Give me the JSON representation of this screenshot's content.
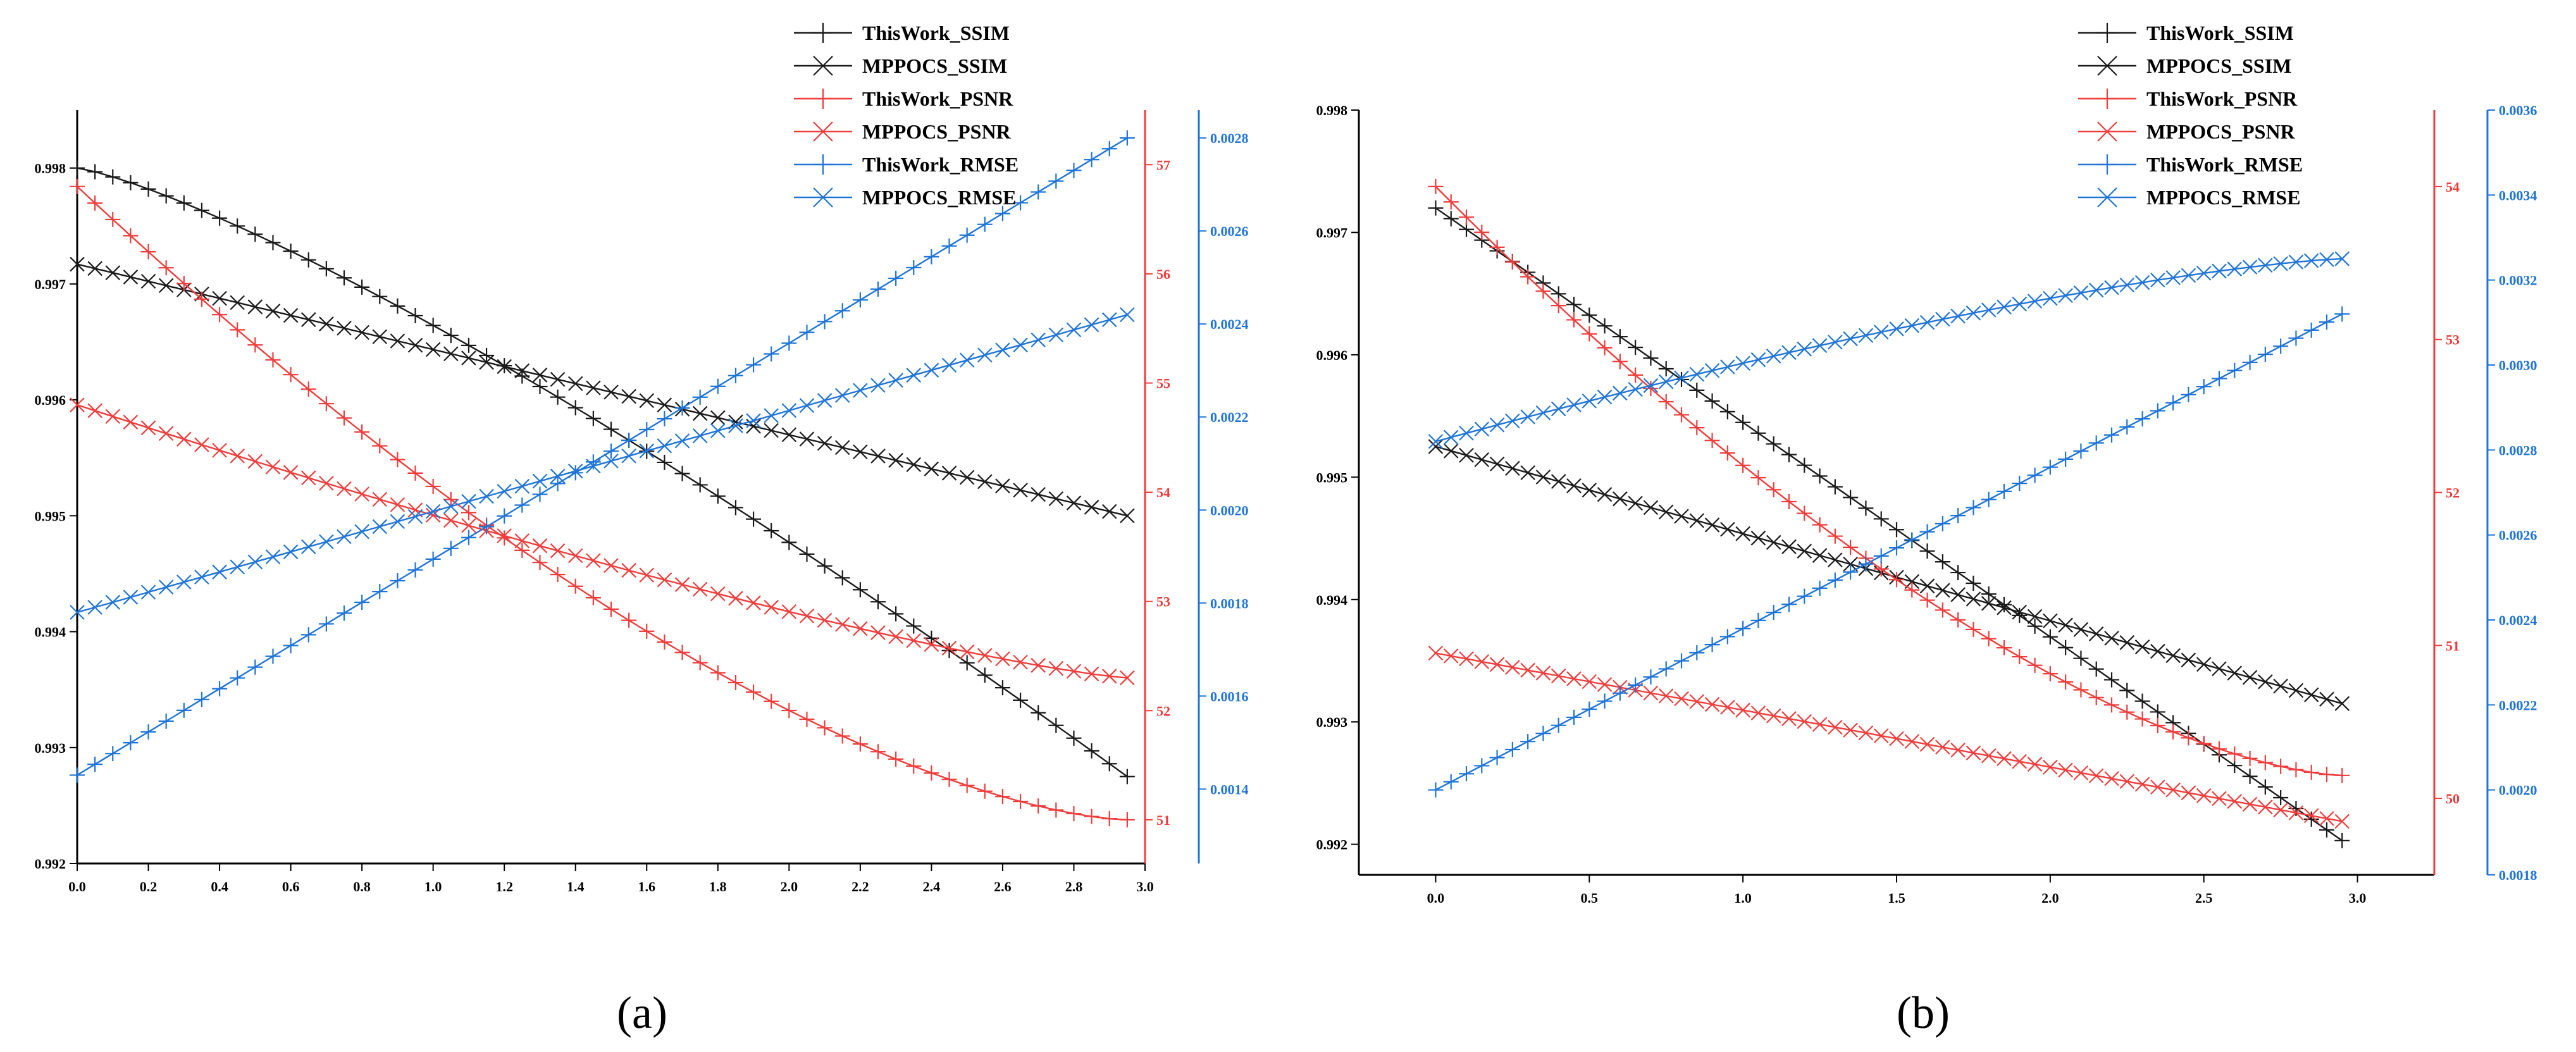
{
  "figure": {
    "caption_a": "(a)",
    "caption_b": "(b)"
  },
  "colors": {
    "ssim": "#1a1a1a",
    "psnr": "#f03c3c",
    "rmse": "#1f74d6"
  },
  "chart_data": [
    {
      "panel": "(a)",
      "type": "line",
      "title": "",
      "xlabel": "",
      "ylabel_left": "",
      "ylabel_right1": "",
      "ylabel_right2": "",
      "xlim": [
        0,
        3.0
      ],
      "xticks": [
        0.0,
        0.2,
        0.4,
        0.6,
        0.8,
        1.0,
        1.2,
        1.4,
        1.6,
        1.8,
        2.0,
        2.2,
        2.4,
        2.6,
        2.8,
        3.0
      ],
      "xtick_labels": [
        "0.0",
        "0.2",
        "0.4",
        "0.6",
        "0.8",
        "1.0",
        "1.2",
        "1.4",
        "1.6",
        "1.8",
        "2.0",
        "2.2",
        "2.4",
        "2.6",
        "2.8",
        "3.0"
      ],
      "axes": {
        "ssim": {
          "side": "left",
          "ylim": [
            0.992,
            0.9985
          ],
          "ticks": [
            0.992,
            0.993,
            0.994,
            0.995,
            0.996,
            0.997,
            0.998
          ],
          "tick_labels": [
            "0.992",
            "0.993",
            "0.994",
            "0.995",
            "0.996",
            "0.997",
            "0.998"
          ]
        },
        "psnr": {
          "side": "right",
          "ylim": [
            50.6,
            57.5
          ],
          "ticks": [
            51,
            52,
            53,
            54,
            55,
            56,
            57
          ],
          "tick_labels": [
            "51",
            "52",
            "53",
            "54",
            "55",
            "56",
            "57"
          ]
        },
        "rmse": {
          "side": "right-outer",
          "ylim": [
            0.00124,
            0.00286
          ],
          "ticks": [
            0.0014,
            0.0016,
            0.0018,
            0.002,
            0.0022,
            0.0024,
            0.0026,
            0.0028
          ],
          "tick_labels": [
            "0.0014",
            "0.0016",
            "0.0018",
            "0.0020",
            "0.0022",
            "0.0024",
            "0.0026",
            "0.0028"
          ]
        }
      },
      "legend_position": "top-right",
      "series": [
        {
          "name": "ThisWork_SSIM",
          "axis": "ssim",
          "marker": "plus",
          "x_start": 0.0,
          "x_end": 2.95,
          "n": 60,
          "curve": "convex",
          "y_start": 0.998,
          "y_end": 0.99275
        },
        {
          "name": "MPPOCS_SSIM",
          "axis": "ssim",
          "marker": "cross",
          "x_start": 0.0,
          "x_end": 2.95,
          "n": 60,
          "curve": "linear",
          "y_start": 0.99717,
          "y_end": 0.995
        },
        {
          "name": "ThisWork_PSNR",
          "axis": "psnr",
          "marker": "plus",
          "x_start": 0.0,
          "x_end": 2.95,
          "n": 60,
          "curve": "concave",
          "y_start": 56.8,
          "y_end": 51.0
        },
        {
          "name": "MPPOCS_PSNR",
          "axis": "psnr",
          "marker": "cross",
          "x_start": 0.0,
          "x_end": 2.95,
          "n": 60,
          "curve": "concave-mild",
          "y_start": 54.8,
          "y_end": 52.3
        },
        {
          "name": "ThisWork_RMSE",
          "axis": "rmse",
          "marker": "plus",
          "x_start": 0.0,
          "x_end": 2.95,
          "n": 60,
          "curve": "linear",
          "y_start": 0.00143,
          "y_end": 0.0028
        },
        {
          "name": "MPPOCS_RMSE",
          "axis": "rmse",
          "marker": "cross",
          "x_start": 0.0,
          "x_end": 2.95,
          "n": 60,
          "curve": "linear",
          "y_start": 0.00178,
          "y_end": 0.00242
        }
      ]
    },
    {
      "panel": "(b)",
      "type": "line",
      "title": "",
      "xlabel": "",
      "ylabel_left": "",
      "ylabel_right1": "",
      "ylabel_right2": "",
      "xlim": [
        -0.25,
        3.25
      ],
      "xticks": [
        0.0,
        0.5,
        1.0,
        1.5,
        2.0,
        2.5,
        3.0
      ],
      "xtick_labels": [
        "0.0",
        "0.5",
        "1.0",
        "1.5",
        "2.0",
        "2.5",
        "3.0"
      ],
      "axes": {
        "ssim": {
          "side": "left",
          "ylim": [
            0.99175,
            0.998
          ],
          "ticks": [
            0.992,
            0.993,
            0.994,
            0.995,
            0.996,
            0.997,
            0.998
          ],
          "tick_labels": [
            "0.992",
            "0.993",
            "0.994",
            "0.995",
            "0.996",
            "0.997",
            "0.998"
          ]
        },
        "psnr": {
          "side": "right",
          "ylim": [
            49.5,
            54.5
          ],
          "ticks": [
            50,
            51,
            52,
            53,
            54
          ],
          "tick_labels": [
            "50",
            "51",
            "52",
            "53",
            "54"
          ]
        },
        "rmse": {
          "side": "right-outer",
          "ylim": [
            0.0018,
            0.0036
          ],
          "ticks": [
            0.0018,
            0.002,
            0.0022,
            0.0024,
            0.0026,
            0.0028,
            0.003,
            0.0032,
            0.0034,
            0.0036
          ],
          "tick_labels": [
            "0.0018",
            "0.0020",
            "0.0022",
            "0.0024",
            "0.0026",
            "0.0028",
            "0.0030",
            "0.0032",
            "0.0034",
            "0.0036"
          ]
        }
      },
      "legend_position": "top-center",
      "series": [
        {
          "name": "ThisWork_SSIM",
          "axis": "ssim",
          "marker": "plus",
          "x_start": 0.0,
          "x_end": 2.95,
          "n": 60,
          "curve": "linear",
          "y_start": 0.9972,
          "y_end": 0.99203
        },
        {
          "name": "MPPOCS_SSIM",
          "axis": "ssim",
          "marker": "cross",
          "x_start": 0.0,
          "x_end": 2.95,
          "n": 60,
          "curve": "linear",
          "y_start": 0.99525,
          "y_end": 0.99315
        },
        {
          "name": "ThisWork_PSNR",
          "axis": "psnr",
          "marker": "plus",
          "x_start": 0.0,
          "x_end": 2.95,
          "n": 60,
          "curve": "concave",
          "y_start": 54.0,
          "y_end": 50.15
        },
        {
          "name": "MPPOCS_PSNR",
          "axis": "psnr",
          "marker": "cross",
          "x_start": 0.0,
          "x_end": 2.95,
          "n": 60,
          "curve": "linear",
          "y_start": 50.95,
          "y_end": 49.85
        },
        {
          "name": "ThisWork_RMSE",
          "axis": "rmse",
          "marker": "plus",
          "x_start": 0.0,
          "x_end": 2.95,
          "n": 60,
          "curve": "linear",
          "y_start": 0.002,
          "y_end": 0.00312
        },
        {
          "name": "MPPOCS_RMSE",
          "axis": "rmse",
          "marker": "cross",
          "x_start": 0.0,
          "x_end": 2.95,
          "n": 60,
          "curve": "sqrt",
          "y_start": 0.00282,
          "y_end": 0.00325
        }
      ]
    }
  ]
}
